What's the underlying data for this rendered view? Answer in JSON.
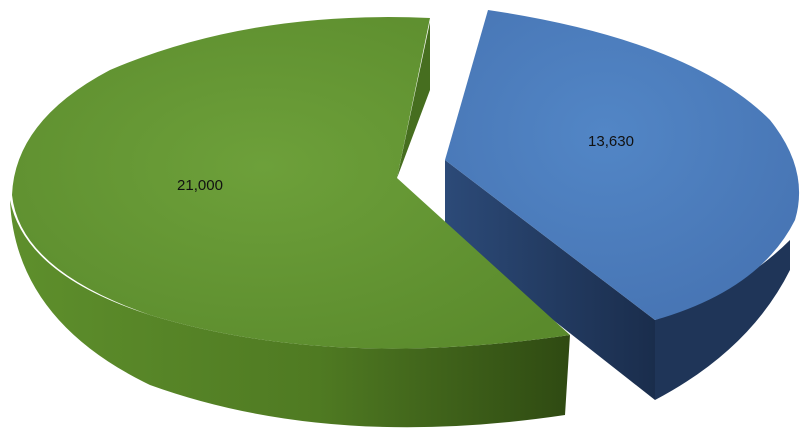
{
  "chart_data": {
    "type": "pie",
    "style": "3d",
    "slices": [
      {
        "value": 21000,
        "label": "21,000",
        "color": "#5a8a2c"
      },
      {
        "value": 13630,
        "label": "13,630",
        "color": "#4a78b8"
      }
    ]
  }
}
